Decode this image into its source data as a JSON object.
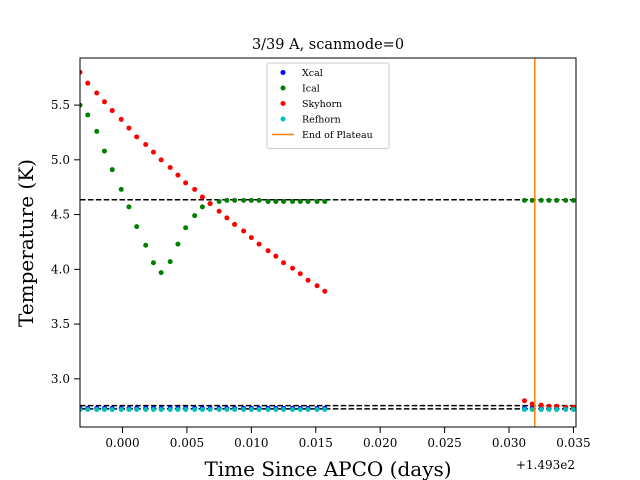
{
  "chart_data": {
    "type": "scatter",
    "title": "3/39 A, scanmode=0",
    "xlabel": "Time Since APCO (days)",
    "ylabel": "Temperature (K)",
    "x_offset_label": "+1.493e2",
    "xlim": [
      -0.0033,
      0.0352
    ],
    "ylim": [
      2.56,
      5.93
    ],
    "x_ticks": [
      0.0,
      0.005,
      0.01,
      0.015,
      0.02,
      0.025,
      0.03,
      0.035
    ],
    "x_tick_labels": [
      "0.000",
      "0.005",
      "0.010",
      "0.015",
      "0.020",
      "0.025",
      "0.030",
      "0.035"
    ],
    "y_ticks": [
      3.0,
      3.5,
      4.0,
      4.5,
      5.0,
      5.5
    ],
    "y_tick_labels": [
      "3.0",
      "3.5",
      "4.0",
      "4.5",
      "5.0",
      "5.5"
    ],
    "grid": false,
    "legend_position": "top-center",
    "hlines": [
      {
        "y": 4.635,
        "style": "dashed",
        "color": "#000000"
      },
      {
        "y": 2.755,
        "style": "dashed",
        "color": "#000000"
      },
      {
        "y": 2.725,
        "style": "dashed",
        "color": "#000000"
      }
    ],
    "vlines": [
      {
        "x": 0.032,
        "color": "#ff7f0e",
        "series": "End of Plateau"
      }
    ],
    "series": [
      {
        "name": "Xcal",
        "color": "#0000ff",
        "x": [
          -0.0033,
          -0.0027,
          -0.002,
          -0.0014,
          -0.0008,
          -0.0001,
          0.0005,
          0.0011,
          0.0018,
          0.0024,
          0.003,
          0.0037,
          0.0043,
          0.0049,
          0.0056,
          0.0062,
          0.0068,
          0.0075,
          0.0081,
          0.0087,
          0.0094,
          0.01,
          0.0106,
          0.0113,
          0.0119,
          0.0125,
          0.0132,
          0.0138,
          0.0144,
          0.0151,
          0.0157,
          0.0312,
          0.0318,
          0.0325,
          0.0331,
          0.0337,
          0.0344,
          0.035
        ],
        "y": [
          2.73,
          2.73,
          2.73,
          2.73,
          2.73,
          2.73,
          2.73,
          2.73,
          2.73,
          2.73,
          2.73,
          2.73,
          2.73,
          2.73,
          2.73,
          2.73,
          2.73,
          2.73,
          2.73,
          2.73,
          2.73,
          2.73,
          2.73,
          2.73,
          2.73,
          2.73,
          2.73,
          2.73,
          2.73,
          2.73,
          2.73,
          2.73,
          2.73,
          2.73,
          2.73,
          2.73,
          2.73,
          2.73
        ]
      },
      {
        "name": "Ical",
        "color": "#008000",
        "x": [
          -0.0033,
          -0.0027,
          -0.002,
          -0.0014,
          -0.0008,
          -0.0001,
          0.0005,
          0.0011,
          0.0018,
          0.0024,
          0.003,
          0.0037,
          0.0043,
          0.0049,
          0.0056,
          0.0062,
          0.0068,
          0.0075,
          0.0081,
          0.0087,
          0.0094,
          0.01,
          0.0106,
          0.0113,
          0.0119,
          0.0125,
          0.0132,
          0.0138,
          0.0144,
          0.0151,
          0.0157,
          0.0312,
          0.0318,
          0.0325,
          0.0331,
          0.0337,
          0.0344,
          0.035
        ],
        "y": [
          5.5,
          5.41,
          5.26,
          5.08,
          4.91,
          4.73,
          4.57,
          4.39,
          4.22,
          4.06,
          3.97,
          4.07,
          4.23,
          4.38,
          4.49,
          4.57,
          4.6,
          4.62,
          4.63,
          4.63,
          4.63,
          4.63,
          4.63,
          4.62,
          4.62,
          4.62,
          4.62,
          4.62,
          4.62,
          4.62,
          4.62,
          4.63,
          4.63,
          4.63,
          4.63,
          4.63,
          4.63,
          4.63
        ]
      },
      {
        "name": "Skyhorn",
        "color": "#ff0000",
        "x": [
          -0.0033,
          -0.0027,
          -0.002,
          -0.0014,
          -0.0008,
          -0.0001,
          0.0005,
          0.0011,
          0.0018,
          0.0024,
          0.003,
          0.0037,
          0.0043,
          0.0049,
          0.0056,
          0.0062,
          0.0068,
          0.0075,
          0.0081,
          0.0087,
          0.0094,
          0.01,
          0.0106,
          0.0113,
          0.0119,
          0.0125,
          0.0132,
          0.0138,
          0.0144,
          0.0151,
          0.0157,
          0.0312,
          0.0318,
          0.0325,
          0.0331,
          0.0337,
          0.0344,
          0.035
        ],
        "y": [
          5.8,
          5.7,
          5.61,
          5.53,
          5.45,
          5.37,
          5.29,
          5.21,
          5.14,
          5.07,
          5.0,
          4.93,
          4.86,
          4.79,
          4.73,
          4.66,
          4.6,
          4.53,
          4.47,
          4.41,
          4.35,
          4.29,
          4.23,
          4.17,
          4.12,
          4.06,
          4.01,
          3.96,
          3.9,
          3.85,
          3.8,
          2.8,
          2.77,
          2.76,
          2.75,
          2.75,
          2.74,
          2.74
        ]
      },
      {
        "name": "Refhorn",
        "color": "#00bfbf",
        "x": [
          -0.0033,
          -0.0027,
          -0.002,
          -0.0014,
          -0.0008,
          -0.0001,
          0.0005,
          0.0011,
          0.0018,
          0.0024,
          0.003,
          0.0037,
          0.0043,
          0.0049,
          0.0056,
          0.0062,
          0.0068,
          0.0075,
          0.0081,
          0.0087,
          0.0094,
          0.01,
          0.0106,
          0.0113,
          0.0119,
          0.0125,
          0.0132,
          0.0138,
          0.0144,
          0.0151,
          0.0157,
          0.0312,
          0.0318,
          0.0325,
          0.0331,
          0.0337,
          0.0344,
          0.035
        ],
        "y": [
          2.72,
          2.72,
          2.72,
          2.72,
          2.72,
          2.72,
          2.72,
          2.72,
          2.72,
          2.72,
          2.72,
          2.72,
          2.72,
          2.72,
          2.72,
          2.72,
          2.72,
          2.72,
          2.72,
          2.72,
          2.72,
          2.72,
          2.72,
          2.72,
          2.72,
          2.72,
          2.72,
          2.72,
          2.72,
          2.72,
          2.72,
          2.72,
          2.72,
          2.72,
          2.72,
          2.72,
          2.72,
          2.72
        ]
      }
    ],
    "legend": [
      {
        "label": "Xcal",
        "marker": "dot",
        "color": "#0000ff"
      },
      {
        "label": "Ical",
        "marker": "dot",
        "color": "#008000"
      },
      {
        "label": "Skyhorn",
        "marker": "dot",
        "color": "#ff0000"
      },
      {
        "label": "Refhorn",
        "marker": "dot",
        "color": "#00bfbf"
      },
      {
        "label": "End of Plateau",
        "marker": "line",
        "color": "#ff7f0e"
      }
    ]
  }
}
